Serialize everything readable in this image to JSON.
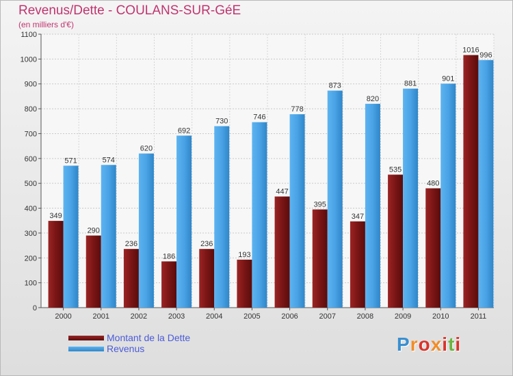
{
  "header": {
    "title": "Revenus/Dette - COULANS-SUR-GéE",
    "subtitle": "(en milliers d'€)"
  },
  "legend": {
    "items": [
      {
        "label": "Montant de la Dette",
        "color": "#7a1515"
      },
      {
        "label": "Revenus",
        "color": "#4aa3e6"
      }
    ]
  },
  "logo": {
    "text": "Proxiti"
  },
  "chart_data": {
    "type": "bar",
    "title": "Revenus/Dette - COULANS-SUR-GéE",
    "ylabel": "(en milliers d'€)",
    "xlabel": "",
    "categories": [
      "2000",
      "2001",
      "2002",
      "2003",
      "2004",
      "2005",
      "2006",
      "2007",
      "2008",
      "2009",
      "2010",
      "2011"
    ],
    "series": [
      {
        "name": "Montant de la Dette",
        "color": "#7a1515",
        "values": [
          349,
          290,
          236,
          186,
          236,
          193,
          447,
          395,
          347,
          535,
          480,
          1016
        ]
      },
      {
        "name": "Revenus",
        "color": "#4aa3e6",
        "values": [
          571,
          574,
          620,
          692,
          730,
          746,
          778,
          873,
          820,
          881,
          901,
          996
        ]
      }
    ],
    "ylim": [
      0,
      1100
    ],
    "yticks": [
      0,
      100,
      200,
      300,
      400,
      500,
      600,
      700,
      800,
      900,
      1000,
      1100
    ],
    "grid": true,
    "legend_position": "bottom-left"
  }
}
